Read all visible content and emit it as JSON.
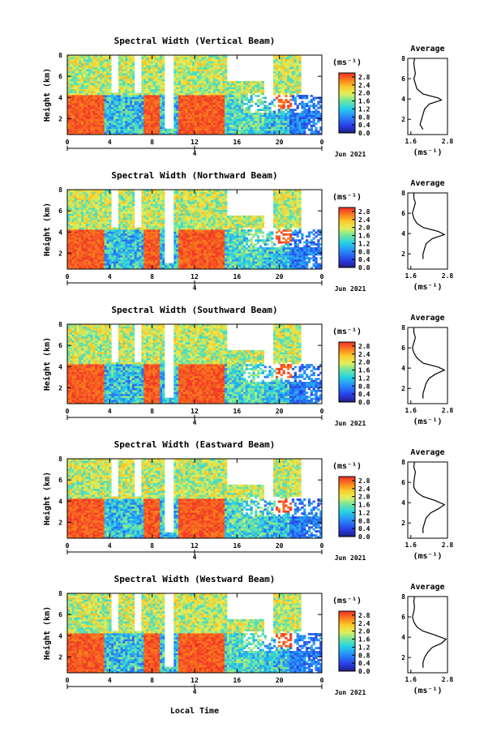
{
  "figure": {
    "xlabel": "Local Time",
    "date_label": "Jun 2021",
    "colorbar_unit": "(ms⁻¹)",
    "average_title": "Average",
    "average_xlabel": "(ms⁻¹)"
  },
  "chart_data": [
    {
      "type": "heatmap",
      "title": "Spectral Width (Vertical Beam)",
      "ylabel": "Height (km)",
      "yticks": [
        "2",
        "4",
        "6",
        "8"
      ],
      "ylim": [
        0.5,
        8
      ],
      "xticks": [
        "0",
        "4",
        "8",
        "12",
        "16",
        "20",
        "0"
      ],
      "xlim": [
        0,
        24
      ],
      "date_tick": "4",
      "colorbar": {
        "ticks": [
          "0.0",
          "0.4",
          "0.8",
          "1.2",
          "1.6",
          "2.0",
          "2.4",
          "2.8"
        ],
        "range": [
          0,
          3.0
        ]
      },
      "average": {
        "xticks": [
          "1.6",
          "2.8"
        ],
        "xlim": [
          1.5,
          2.8
        ],
        "profile": [
          [
            2.0,
            1.0
          ],
          [
            1.9,
            1.5
          ],
          [
            1.95,
            2.0
          ],
          [
            2.0,
            2.5
          ],
          [
            2.05,
            3.0
          ],
          [
            2.2,
            3.5
          ],
          [
            2.6,
            3.9
          ],
          [
            2.5,
            4.1
          ],
          [
            2.0,
            4.5
          ],
          [
            1.8,
            5.0
          ],
          [
            1.75,
            5.5
          ],
          [
            1.7,
            6.0
          ],
          [
            1.75,
            6.5
          ],
          [
            1.72,
            7.0
          ],
          [
            1.7,
            7.5
          ],
          [
            1.72,
            8.0
          ]
        ]
      }
    },
    {
      "type": "heatmap",
      "title": "Spectral Width (Northward Beam)",
      "ylabel": "Height (km)",
      "yticks": [
        "2",
        "4",
        "6",
        "8"
      ],
      "ylim": [
        0.5,
        8
      ],
      "xticks": [
        "0",
        "4",
        "8",
        "12",
        "16",
        "20",
        "0"
      ],
      "xlim": [
        0,
        24
      ],
      "date_tick": "4",
      "colorbar": {
        "ticks": [
          "0.0",
          "0.4",
          "0.8",
          "1.2",
          "1.6",
          "2.0",
          "2.4",
          "2.8"
        ],
        "range": [
          0,
          3.0
        ]
      },
      "average": {
        "xticks": [
          "1.6",
          "2.8"
        ],
        "xlim": [
          1.5,
          2.8
        ],
        "profile": [
          [
            2.0,
            1.5
          ],
          [
            2.0,
            2.0
          ],
          [
            2.05,
            2.5
          ],
          [
            2.1,
            3.0
          ],
          [
            2.3,
            3.5
          ],
          [
            2.7,
            3.9
          ],
          [
            2.5,
            4.2
          ],
          [
            2.0,
            4.6
          ],
          [
            1.8,
            5.0
          ],
          [
            1.7,
            5.5
          ],
          [
            1.65,
            6.0
          ],
          [
            1.7,
            6.5
          ],
          [
            1.75,
            7.0
          ],
          [
            1.7,
            7.5
          ],
          [
            1.7,
            8.0
          ]
        ]
      }
    },
    {
      "type": "heatmap",
      "title": "Spectral Width (Southward Beam)",
      "ylabel": "Height (km)",
      "yticks": [
        "2",
        "4",
        "6",
        "8"
      ],
      "ylim": [
        0.5,
        8
      ],
      "xticks": [
        "0",
        "4",
        "8",
        "12",
        "16",
        "20",
        "0"
      ],
      "xlim": [
        0,
        24
      ],
      "date_tick": "4",
      "colorbar": {
        "ticks": [
          "0.0",
          "0.4",
          "0.8",
          "1.2",
          "1.6",
          "2.0",
          "2.4",
          "2.8"
        ],
        "range": [
          0,
          3.0
        ]
      },
      "average": {
        "xticks": [
          "1.6",
          "2.8"
        ],
        "xlim": [
          1.5,
          2.8
        ],
        "profile": [
          [
            2.0,
            1.0
          ],
          [
            2.0,
            1.5
          ],
          [
            2.05,
            2.0
          ],
          [
            2.1,
            2.5
          ],
          [
            2.2,
            3.0
          ],
          [
            2.4,
            3.4
          ],
          [
            2.7,
            3.8
          ],
          [
            2.5,
            4.1
          ],
          [
            2.0,
            4.5
          ],
          [
            1.8,
            5.0
          ],
          [
            1.7,
            5.5
          ],
          [
            1.65,
            6.0
          ],
          [
            1.7,
            6.5
          ],
          [
            1.75,
            7.0
          ],
          [
            1.7,
            7.5
          ],
          [
            1.7,
            8.0
          ]
        ]
      }
    },
    {
      "type": "heatmap",
      "title": "Spectral Width (Eastward Beam)",
      "ylabel": "Height (km)",
      "yticks": [
        "2",
        "4",
        "6",
        "8"
      ],
      "ylim": [
        0.5,
        8
      ],
      "xticks": [
        "0",
        "4",
        "8",
        "12",
        "16",
        "20",
        "0"
      ],
      "xlim": [
        0,
        24
      ],
      "date_tick": "4",
      "colorbar": {
        "ticks": [
          "0.0",
          "0.4",
          "0.8",
          "1.2",
          "1.6",
          "2.0",
          "2.4",
          "2.8"
        ],
        "range": [
          0,
          3.0
        ]
      },
      "average": {
        "xticks": [
          "1.6",
          "2.8"
        ],
        "xlim": [
          1.5,
          2.8
        ],
        "profile": [
          [
            2.0,
            1.0
          ],
          [
            2.0,
            1.5
          ],
          [
            2.05,
            2.0
          ],
          [
            2.1,
            2.5
          ],
          [
            2.25,
            3.0
          ],
          [
            2.5,
            3.4
          ],
          [
            2.7,
            3.8
          ],
          [
            2.4,
            4.2
          ],
          [
            2.0,
            4.6
          ],
          [
            1.8,
            5.0
          ],
          [
            1.7,
            5.5
          ],
          [
            1.7,
            6.0
          ],
          [
            1.72,
            6.5
          ],
          [
            1.75,
            7.0
          ],
          [
            1.7,
            7.5
          ],
          [
            1.72,
            8.0
          ]
        ]
      }
    },
    {
      "type": "heatmap",
      "title": "Spectral Width (Westward Beam)",
      "ylabel": "Height (km)",
      "yticks": [
        "2",
        "4",
        "6",
        "8"
      ],
      "ylim": [
        0.5,
        8
      ],
      "xticks": [
        "0",
        "4",
        "8",
        "12",
        "16",
        "20",
        "0"
      ],
      "xlim": [
        0,
        24
      ],
      "date_tick": "4",
      "colorbar": {
        "ticks": [
          "0.0",
          "0.4",
          "0.8",
          "1.2",
          "1.6",
          "2.0",
          "2.4",
          "2.8"
        ],
        "range": [
          0,
          3.0
        ]
      },
      "average": {
        "xticks": [
          "1.6",
          "2.8"
        ],
        "xlim": [
          1.5,
          2.8
        ],
        "profile": [
          [
            2.0,
            1.0
          ],
          [
            2.0,
            1.5
          ],
          [
            2.05,
            2.0
          ],
          [
            2.15,
            2.5
          ],
          [
            2.3,
            3.0
          ],
          [
            2.6,
            3.4
          ],
          [
            2.75,
            3.8
          ],
          [
            2.4,
            4.2
          ],
          [
            2.0,
            4.6
          ],
          [
            1.8,
            5.0
          ],
          [
            1.7,
            5.5
          ],
          [
            1.65,
            6.0
          ],
          [
            1.7,
            6.5
          ],
          [
            1.72,
            7.0
          ],
          [
            1.7,
            7.5
          ],
          [
            1.72,
            8.0
          ]
        ]
      }
    }
  ]
}
